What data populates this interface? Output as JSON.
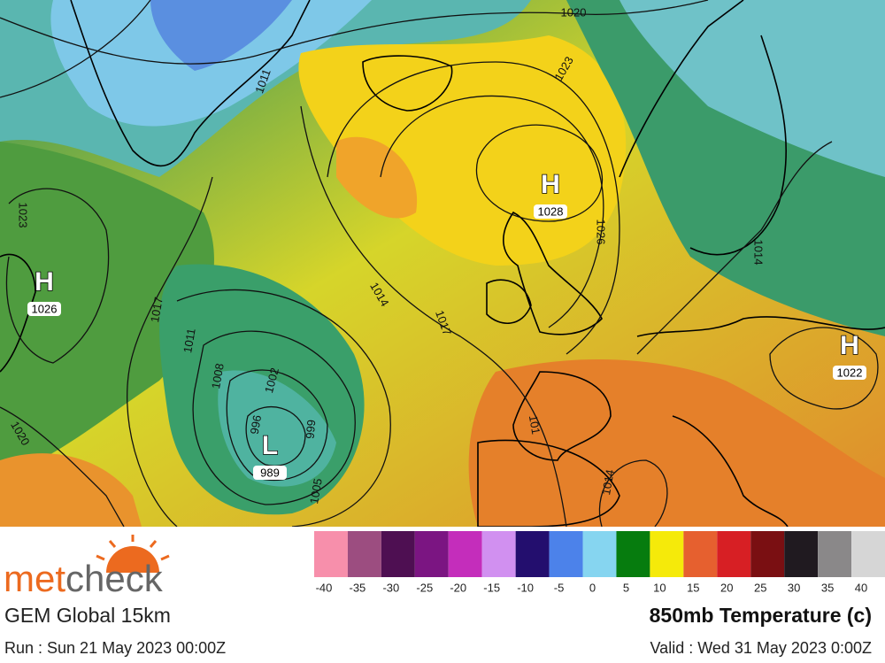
{
  "logo": {
    "parts": [
      "met",
      "check"
    ]
  },
  "model": "GEM Global 15km",
  "run": "Run : Sun 21 May 2023 00:00Z",
  "field": "850mb Temperature (c)",
  "valid": "Valid : Wed 31 May 2023 0:00Z",
  "pressure_centers": [
    {
      "symbol": "H",
      "value": 1028
    },
    {
      "symbol": "H",
      "value": 1026
    },
    {
      "symbol": "H",
      "value": 1022
    },
    {
      "symbol": "L",
      "value": 989
    }
  ],
  "isobar_labels": [
    1020,
    1023,
    1011,
    1023,
    1017,
    1014,
    1017,
    1026,
    1014,
    1011,
    1008,
    1002,
    999,
    996,
    1005,
    101,
    1014,
    1020
  ],
  "legend": {
    "labels": [
      -40,
      -35,
      -30,
      -25,
      -20,
      -15,
      -10,
      -5,
      0,
      5,
      10,
      15,
      20,
      25,
      30,
      35,
      40
    ],
    "colors": [
      "#f78fab",
      "#9c4d80",
      "#4e0f52",
      "#7b1582",
      "#c42dbb",
      "#d190f0",
      "#230e6e",
      "#4c82ea",
      "#86d5f0",
      "#067c0e",
      "#f5ea0a",
      "#e6602f",
      "#d71f24",
      "#7a0f12",
      "#201a20",
      "#8a8889",
      "#d6d6d6"
    ]
  }
}
